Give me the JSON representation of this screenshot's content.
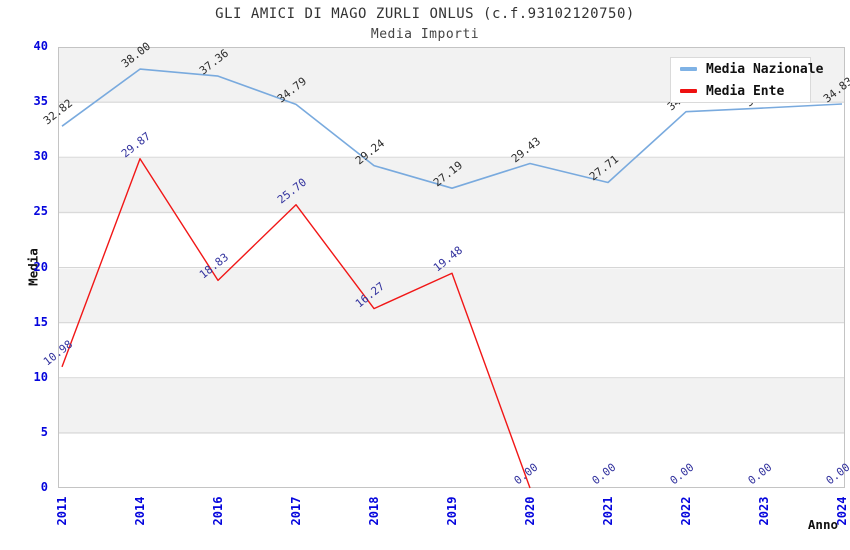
{
  "header": {
    "title": "GLI AMICI DI MAGO ZURLI ONLUS (c.f.93102120750)",
    "subtitle": "Media Importi"
  },
  "axes": {
    "y_label": "Media",
    "x_label": "Anno",
    "y_ticks": [
      40,
      35,
      30,
      25,
      20,
      15,
      10,
      5,
      0
    ],
    "x_ticks": [
      "2011",
      "2014",
      "2016",
      "2017",
      "2018",
      "2019",
      "2020",
      "2021",
      "2022",
      "2023",
      "2024"
    ],
    "tick_color": "#0505dd"
  },
  "legend": {
    "items": [
      {
        "label": "Media Nazionale",
        "color": "#7fb2e5"
      },
      {
        "label": "Media Ente",
        "color": "#ee1111"
      }
    ]
  },
  "chart_data": {
    "type": "line",
    "title": "GLI AMICI DI MAGO ZURLI ONLUS (c.f.93102120750)",
    "subtitle": "Media Importi",
    "xlabel": "Anno",
    "ylabel": "Media",
    "x": [
      "2011",
      "2014",
      "2016",
      "2017",
      "2018",
      "2019",
      "2020",
      "2021",
      "2022",
      "2023",
      "2024"
    ],
    "series": [
      {
        "name": "Media Nazionale",
        "color": "#79aade",
        "label_color": "#2b2b2b",
        "values": [
          32.82,
          38.0,
          37.36,
          34.79,
          29.24,
          27.19,
          29.43,
          27.71,
          34.13,
          34.47,
          34.83
        ],
        "labels": [
          "32.82",
          "38.00",
          "37.36",
          "34.79",
          "29.24",
          "27.19",
          "29.43",
          "27.71",
          "34.13",
          "34.47",
          "34.83"
        ]
      },
      {
        "name": "Media Ente",
        "color": "#f11717",
        "label_color": "#32329e",
        "hide_zero_tail": true,
        "values": [
          10.98,
          29.87,
          18.83,
          25.7,
          16.27,
          19.48,
          0,
          0,
          0,
          0,
          0
        ],
        "labels": [
          "10.98",
          "29.87",
          "18.83",
          "25.70",
          "16.27",
          "19.48",
          "0.00",
          "0.00",
          "0.00",
          "0.00",
          "0.00"
        ]
      }
    ],
    "ylim": [
      0,
      40
    ],
    "y_tick_step": 5,
    "grid": "horizontal",
    "banded_background": true,
    "legend_position": "top-right"
  }
}
